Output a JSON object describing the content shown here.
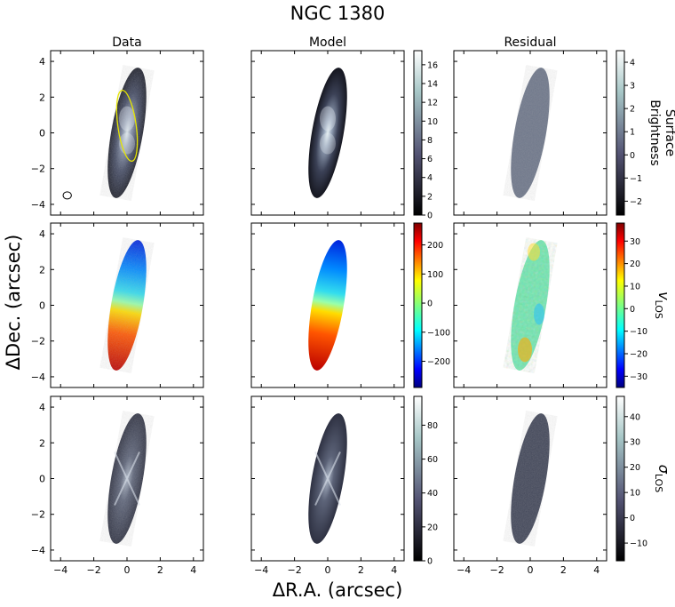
{
  "chart_data": {
    "type": "heatmap",
    "title": "NGC 1380",
    "xlabel": "ΔR.A. (arcsec)",
    "ylabel": "ΔDec. (arcsec)",
    "xlim": [
      -4.6,
      4.6
    ],
    "ylim": [
      -4.6,
      4.6
    ],
    "xticks": [
      "−4",
      "−2",
      "0",
      "2",
      "4"
    ],
    "yticks": [
      "4",
      "2",
      "0",
      "−2",
      "−4"
    ],
    "column_titles": [
      "Data",
      "Model",
      "Residual"
    ],
    "row_labels": [
      {
        "main": "Surface",
        "main2": "Brightness",
        "sub": ""
      },
      {
        "main": "v",
        "main2": "",
        "sub": "LOS"
      },
      {
        "main": "σ",
        "main2": "",
        "sub": "LOS"
      }
    ],
    "source_region": {
      "shape": "ellipse",
      "center": [
        0,
        0
      ],
      "semi_major": 3.7,
      "semi_minor": 0.95,
      "position_angle_deg": 10
    },
    "annotation_ellipse": {
      "color": "#e6e600",
      "center": [
        0,
        0
      ],
      "semi_major": 2.0,
      "semi_minor": 0.55
    },
    "beam_marker": {
      "center": [
        -3.6,
        -3.5
      ],
      "size": 0.25
    },
    "colorbars": [
      {
        "panel": "model-flux",
        "cmap": "bone",
        "min": 0,
        "max": 17.5,
        "ticks": [
          "16",
          "14",
          "12",
          "10",
          "8",
          "6",
          "4",
          "2",
          "0"
        ],
        "tick_values": [
          16,
          14,
          12,
          10,
          8,
          6,
          4,
          2,
          0
        ]
      },
      {
        "panel": "residual-flux",
        "cmap": "bone",
        "min": -2.6,
        "max": 4.5,
        "ticks": [
          "4",
          "3",
          "2",
          "1",
          "0",
          "−1",
          "−2"
        ],
        "tick_values": [
          4,
          3,
          2,
          1,
          0,
          -1,
          -2
        ]
      },
      {
        "panel": "model-velocity",
        "cmap": "jet",
        "min": -290,
        "max": 275,
        "ticks": [
          "200",
          "100",
          "0",
          "−100",
          "−200"
        ],
        "tick_values": [
          200,
          100,
          0,
          -100,
          -200
        ]
      },
      {
        "panel": "residual-velocity",
        "cmap": "jet",
        "min": -35,
        "max": 38,
        "ticks": [
          "30",
          "20",
          "10",
          "0",
          "−10",
          "−20",
          "−30"
        ],
        "tick_values": [
          30,
          20,
          10,
          0,
          -10,
          -20,
          -30
        ]
      },
      {
        "panel": "model-dispersion",
        "cmap": "bone",
        "min": 0,
        "max": 97,
        "ticks": [
          "80",
          "60",
          "40",
          "20",
          "0"
        ],
        "tick_values": [
          80,
          60,
          40,
          20,
          0
        ]
      },
      {
        "panel": "residual-dispersion",
        "cmap": "bone",
        "min": -17,
        "max": 48,
        "ticks": [
          "40",
          "30",
          "20",
          "10",
          "0",
          "−10"
        ],
        "tick_values": [
          40,
          30,
          20,
          10,
          0,
          -10
        ]
      }
    ]
  }
}
